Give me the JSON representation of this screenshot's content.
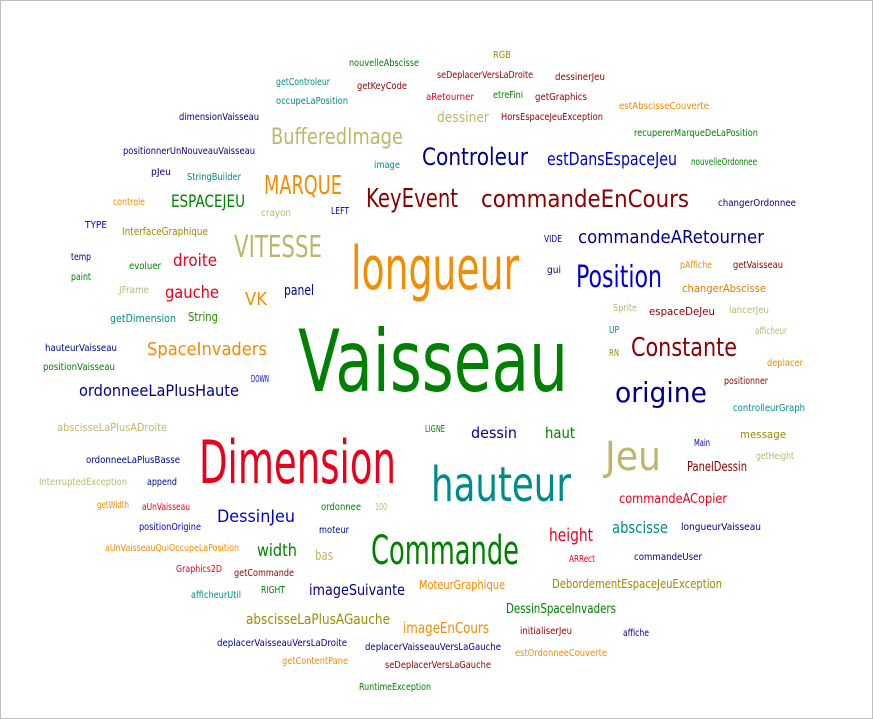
{
  "colors": {
    "green": "#008000",
    "orange": "#f28c00",
    "darkred": "#8b0000",
    "khaki": "#bdb76b",
    "red": "#e8001c",
    "blue": "#0000cd",
    "teal": "#008b8b",
    "navy": "#00008b",
    "olive": "#9a8b00",
    "lime": "#2e8b00",
    "darkorange": "#e07b00",
    "brown": "#a52a2a"
  },
  "words": [
    {
      "text": "Vaisseau",
      "color": "green"
    },
    {
      "text": "longueur",
      "color": "orange"
    },
    {
      "text": "Dimension",
      "color": "red"
    },
    {
      "text": "hauteur",
      "color": "teal"
    },
    {
      "text": "Commande",
      "color": "green"
    },
    {
      "text": "Jeu",
      "color": "khaki"
    },
    {
      "text": "Position",
      "color": "blue"
    },
    {
      "text": "Constante",
      "color": "darkred"
    },
    {
      "text": "origine",
      "color": "navy"
    },
    {
      "text": "KeyEvent",
      "color": "darkred"
    },
    {
      "text": "commandeEnCours",
      "color": "darkred"
    },
    {
      "text": "Controleur",
      "color": "navy"
    },
    {
      "text": "VITESSE",
      "color": "khaki"
    },
    {
      "text": "MARQUE",
      "color": "orange"
    },
    {
      "text": "BufferedImage",
      "color": "khaki"
    },
    {
      "text": "commandeARetourner",
      "color": "navy"
    },
    {
      "text": "estDansEspaceJeu",
      "color": "blue"
    },
    {
      "text": "SpaceInvaders",
      "color": "orange"
    },
    {
      "text": "ordonneeLaPlusHaute",
      "color": "navy"
    },
    {
      "text": "ESPACEJEU",
      "color": "green"
    },
    {
      "text": "droite",
      "color": "red"
    },
    {
      "text": "gauche",
      "color": "red"
    },
    {
      "text": "VK",
      "color": "orange"
    },
    {
      "text": "panel",
      "color": "navy"
    },
    {
      "text": "height",
      "color": "red"
    },
    {
      "text": "abscisse",
      "color": "teal"
    },
    {
      "text": "DessinJeu",
      "color": "blue"
    },
    {
      "text": "width",
      "color": "green"
    },
    {
      "text": "imageSuivante",
      "color": "navy"
    },
    {
      "text": "imageEnCours",
      "color": "orange"
    },
    {
      "text": "abscisseLaPlusAGauche",
      "color": "olive"
    },
    {
      "text": "dessin",
      "color": "navy"
    },
    {
      "text": "haut",
      "color": "green"
    },
    {
      "text": "dessiner",
      "color": "khaki"
    },
    {
      "text": "PanelDessin",
      "color": "darkred"
    },
    {
      "text": "commandeACopier",
      "color": "red"
    },
    {
      "text": "DessinSpaceInvaders",
      "color": "green"
    },
    {
      "text": "DebordementEspaceJeuException",
      "color": "olive"
    },
    {
      "text": "MoteurGraphique",
      "color": "orange"
    },
    {
      "text": "bas",
      "color": "khaki"
    },
    {
      "text": "String",
      "color": "lime"
    },
    {
      "text": "changerAbscisse",
      "color": "darkorange"
    },
    {
      "text": "espaceDeJeu",
      "color": "darkred"
    },
    {
      "text": "message",
      "color": "olive"
    },
    {
      "text": "InterfaceGraphique",
      "color": "olive"
    },
    {
      "text": "getDimension",
      "color": "teal"
    },
    {
      "text": "abscisseLaPlusADroite",
      "color": "khaki"
    },
    {
      "text": "ordonneeLaPlusBasse",
      "color": "navy"
    },
    {
      "text": "HorsEspaceJeuException",
      "color": "darkred"
    },
    {
      "text": "etreFini",
      "color": "green"
    },
    {
      "text": "getGraphics",
      "color": "darkred"
    },
    {
      "text": "dessinerJeu",
      "color": "darkred"
    },
    {
      "text": "seDeplacerVersLaDroite",
      "color": "darkred"
    },
    {
      "text": "aRetourner",
      "color": "red"
    },
    {
      "text": "nouvelleAbscisse",
      "color": "green"
    },
    {
      "text": "getKeyCode",
      "color": "darkred"
    },
    {
      "text": "getControleur",
      "color": "teal"
    },
    {
      "text": "occupeLaPosition",
      "color": "teal"
    },
    {
      "text": "RGB",
      "color": "olive"
    },
    {
      "text": "estAbscisseCouverte",
      "color": "orange"
    },
    {
      "text": "recupererMarqueDeLaPosition",
      "color": "green"
    },
    {
      "text": "nouvelleOrdonnee",
      "color": "green"
    },
    {
      "text": "changerOrdonnee",
      "color": "navy"
    },
    {
      "text": "dimensionVaisseau",
      "color": "navy"
    },
    {
      "text": "positionnerUnNouveauVaisseau",
      "color": "navy"
    },
    {
      "text": "pJeu",
      "color": "navy"
    },
    {
      "text": "StringBuilder",
      "color": "teal"
    },
    {
      "text": "image",
      "color": "teal"
    },
    {
      "text": "controle",
      "color": "orange"
    },
    {
      "text": "crayon",
      "color": "khaki"
    },
    {
      "text": "LEFT",
      "color": "blue"
    },
    {
      "text": "TYPE",
      "color": "blue"
    },
    {
      "text": "temp",
      "color": "navy"
    },
    {
      "text": "paint",
      "color": "green"
    },
    {
      "text": "evoluer",
      "color": "green"
    },
    {
      "text": "JFrame",
      "color": "khaki"
    },
    {
      "text": "VIDE",
      "color": "blue"
    },
    {
      "text": "gui",
      "color": "navy"
    },
    {
      "text": "pAffiche",
      "color": "orange"
    },
    {
      "text": "getVaisseau",
      "color": "darkred"
    },
    {
      "text": "Sprite",
      "color": "khaki"
    },
    {
      "text": "lancerJeu",
      "color": "khaki"
    },
    {
      "text": "afficheur",
      "color": "khaki"
    },
    {
      "text": "UP",
      "color": "teal"
    },
    {
      "text": "RN",
      "color": "olive"
    },
    {
      "text": "deplacer",
      "color": "orange"
    },
    {
      "text": "positionner",
      "color": "darkred"
    },
    {
      "text": "controlleurGraph",
      "color": "teal"
    },
    {
      "text": "hauteurVaisseau",
      "color": "navy"
    },
    {
      "text": "positionVaisseau",
      "color": "green"
    },
    {
      "text": "DOWN",
      "color": "blue"
    },
    {
      "text": "LIGNE",
      "color": "green"
    },
    {
      "text": "Main",
      "color": "blue"
    },
    {
      "text": "getHeight",
      "color": "khaki"
    },
    {
      "text": "InterruptedException",
      "color": "khaki"
    },
    {
      "text": "append",
      "color": "navy"
    },
    {
      "text": "getWidth",
      "color": "orange"
    },
    {
      "text": "aUnVaisseau",
      "color": "red"
    },
    {
      "text": "positionOrigine",
      "color": "blue"
    },
    {
      "text": "ordonnee",
      "color": "green"
    },
    {
      "text": "100",
      "color": "khaki"
    },
    {
      "text": "moteur",
      "color": "navy"
    },
    {
      "text": "longueurVaisseau",
      "color": "navy"
    },
    {
      "text": "aUnVaisseauQuiOccupeLaPosition",
      "color": "orange"
    },
    {
      "text": "ARRect",
      "color": "red"
    },
    {
      "text": "commandeUser",
      "color": "navy"
    },
    {
      "text": "Graphics2D",
      "color": "red"
    },
    {
      "text": "getCommande",
      "color": "darkred"
    },
    {
      "text": "afficheurUtil",
      "color": "teal"
    },
    {
      "text": "RIGHT",
      "color": "green"
    },
    {
      "text": "initialiserJeu",
      "color": "darkred"
    },
    {
      "text": "affiche",
      "color": "navy"
    },
    {
      "text": "deplacerVaisseauVersLaDroite",
      "color": "navy"
    },
    {
      "text": "deplacerVaisseauVersLaGauche",
      "color": "navy"
    },
    {
      "text": "estOrdonneeCouverte",
      "color": "orange"
    },
    {
      "text": "getContentPane",
      "color": "orange"
    },
    {
      "text": "seDeplacerVersLaGauche",
      "color": "darkred"
    },
    {
      "text": "RuntimeException",
      "color": "green"
    }
  ]
}
